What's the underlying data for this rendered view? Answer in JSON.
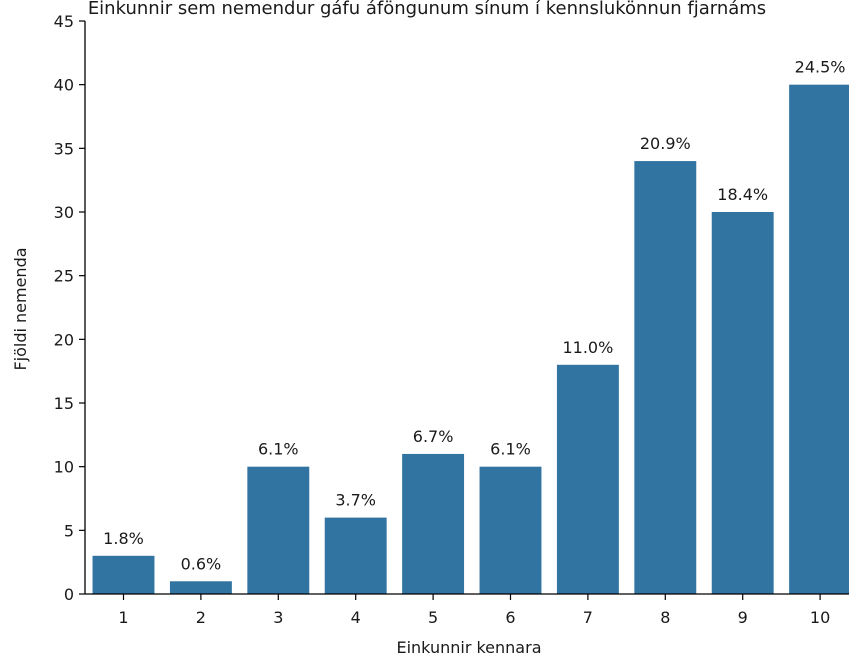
{
  "chart_data": {
    "type": "bar",
    "title": "Einkunnir sem nemendur gáfu áföngunum sínum í kennslukönnun fjarnáms",
    "xlabel": "Einkunnir kennara",
    "ylabel": "Fjöldi nemenda",
    "categories": [
      "1",
      "2",
      "3",
      "4",
      "5",
      "6",
      "7",
      "8",
      "9",
      "10"
    ],
    "values": [
      3,
      1,
      10,
      6,
      11,
      10,
      18,
      34,
      30,
      40
    ],
    "data_labels": [
      "1.8%",
      "0.6%",
      "6.1%",
      "3.7%",
      "6.7%",
      "6.1%",
      "11.0%",
      "20.9%",
      "18.4%",
      "24.5%"
    ],
    "ylim": [
      0,
      45
    ],
    "yticks": [
      0,
      5,
      10,
      15,
      20,
      25,
      30,
      35,
      40,
      45
    ],
    "bar_color": "#3274a1",
    "grid": false,
    "legend": "none"
  }
}
